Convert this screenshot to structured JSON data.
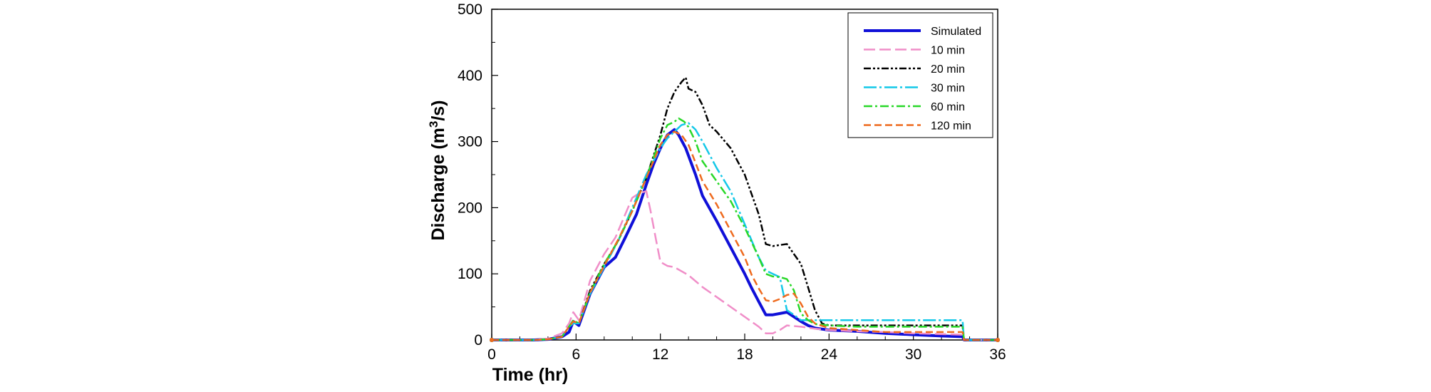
{
  "chart_data": {
    "type": "line",
    "title": "",
    "xlabel": "Time (hr)",
    "ylabel_main": "Discharge (m",
    "ylabel_sup": "3",
    "ylabel_end": "/s)",
    "xlim": [
      0,
      36
    ],
    "ylim": [
      0,
      500
    ],
    "xticks": [
      0,
      6,
      12,
      18,
      24,
      30,
      36
    ],
    "yticks": [
      0,
      100,
      200,
      300,
      400,
      500
    ],
    "xticks_minor_step": 2,
    "yticks_minor_step": 50,
    "grid": false,
    "legend_position": "top-right",
    "series": [
      {
        "name": "Simulated",
        "color": "#1010d8",
        "dash": "",
        "width": 4,
        "x": [
          0,
          2,
          3,
          4,
          5,
          5.5,
          5.8,
          6.2,
          7,
          8,
          8.8,
          9.5,
          10.3,
          11,
          11.5,
          12,
          12.5,
          13,
          13.3,
          13.8,
          14.5,
          15,
          16,
          17,
          18,
          18.5,
          19,
          19.5,
          20,
          20.5,
          21,
          21.5,
          22,
          22.5,
          23,
          24,
          26,
          28,
          30,
          31,
          32,
          33.5,
          33.6,
          36
        ],
        "y": [
          0,
          0,
          0,
          1,
          5,
          12,
          28,
          22,
          70,
          110,
          125,
          155,
          190,
          235,
          265,
          290,
          310,
          318,
          310,
          290,
          250,
          218,
          180,
          140,
          100,
          78,
          58,
          38,
          38,
          40,
          42,
          35,
          28,
          22,
          18,
          15,
          13,
          10,
          8,
          7,
          6,
          5,
          0,
          0
        ]
      },
      {
        "name": "10 min",
        "color": "#f08ec8",
        "dash": "16,6",
        "width": 2.5,
        "x": [
          0,
          3,
          4,
          5,
          5.5,
          5.8,
          6.2,
          7,
          8,
          8.8,
          9.3,
          10,
          10.5,
          11,
          11.3,
          11.7,
          12,
          12.5,
          13,
          14,
          15,
          16,
          17,
          18,
          19,
          19.5,
          20,
          20.5,
          21,
          22,
          23,
          24,
          26,
          28,
          30,
          33.5,
          33.6,
          36
        ],
        "y": [
          0,
          0,
          2,
          10,
          25,
          42,
          30,
          90,
          130,
          155,
          180,
          215,
          222,
          225,
          195,
          150,
          118,
          112,
          110,
          98,
          80,
          65,
          50,
          35,
          20,
          10,
          10,
          15,
          22,
          20,
          17,
          15,
          13,
          12,
          10,
          8,
          0,
          0
        ]
      },
      {
        "name": "20 min",
        "color": "#000000",
        "dash": "10,3,3,3,3,3",
        "width": 2.5,
        "x": [
          0,
          3,
          4,
          5,
          5.5,
          5.8,
          6.2,
          7,
          8,
          9,
          10,
          11,
          12,
          12.5,
          13,
          13.5,
          13.8,
          14,
          14.5,
          15,
          15.5,
          16,
          17,
          18,
          19,
          19.5,
          20,
          21,
          21.5,
          22,
          22.5,
          23,
          23.5,
          24,
          26,
          28,
          30,
          32,
          33.5,
          33.6,
          36
        ],
        "y": [
          0,
          0,
          1,
          5,
          20,
          28,
          25,
          75,
          115,
          150,
          195,
          245,
          310,
          350,
          375,
          390,
          397,
          380,
          375,
          355,
          325,
          315,
          290,
          250,
          190,
          145,
          142,
          145,
          130,
          115,
          80,
          45,
          25,
          22,
          22,
          22,
          22,
          22,
          22,
          0,
          0
        ]
      },
      {
        "name": "30 min",
        "color": "#14c8e8",
        "dash": "18,4,3,4",
        "width": 2.5,
        "x": [
          0,
          3,
          4,
          5,
          5.5,
          5.8,
          6.2,
          7,
          8,
          9,
          10,
          11,
          12,
          12.5,
          13,
          13.5,
          14,
          14.5,
          15,
          16,
          17,
          18,
          19,
          19.5,
          20,
          20.5,
          21,
          21.5,
          22,
          22.5,
          23,
          23.5,
          24,
          26,
          28,
          30,
          32,
          33.5,
          33.6,
          36
        ],
        "y": [
          0,
          0,
          1,
          5,
          20,
          25,
          25,
          70,
          110,
          150,
          200,
          250,
          290,
          305,
          315,
          325,
          328,
          318,
          300,
          260,
          225,
          175,
          125,
          105,
          100,
          95,
          45,
          38,
          30,
          30,
          30,
          30,
          30,
          30,
          30,
          30,
          30,
          30,
          0,
          0
        ]
      },
      {
        "name": "60 min",
        "color": "#28d828",
        "dash": "12,4,3,4",
        "width": 2.5,
        "x": [
          0,
          3,
          4,
          5,
          5.5,
          5.8,
          6.2,
          7,
          8,
          9,
          10,
          11,
          12,
          12.5,
          13,
          13.3,
          13.7,
          14,
          14.5,
          15,
          16,
          17,
          18,
          19,
          19.5,
          20,
          20.5,
          21,
          21.5,
          22,
          22.5,
          23,
          24,
          26,
          28,
          30,
          32,
          33.5,
          33.6,
          36
        ],
        "y": [
          0,
          0,
          1,
          5,
          20,
          30,
          25,
          72,
          115,
          150,
          195,
          245,
          305,
          325,
          330,
          335,
          330,
          322,
          300,
          270,
          240,
          210,
          170,
          125,
          100,
          96,
          95,
          92,
          75,
          40,
          30,
          24,
          22,
          20,
          20,
          20,
          20,
          20,
          0,
          0
        ]
      },
      {
        "name": "120 min",
        "color": "#ee6a1e",
        "dash": "10,5",
        "width": 2.5,
        "x": [
          0,
          3,
          4,
          5,
          5.5,
          5.8,
          6.2,
          7,
          8,
          9,
          10,
          11,
          12,
          12.5,
          13,
          13.5,
          14,
          14.5,
          15,
          16,
          17,
          18,
          18.5,
          19,
          19.5,
          20,
          20.5,
          21,
          21.5,
          22,
          22.5,
          23,
          24,
          26,
          28,
          30,
          32,
          33.5,
          33.6,
          36
        ],
        "y": [
          0,
          0,
          1,
          5,
          20,
          28,
          25,
          72,
          112,
          152,
          195,
          245,
          295,
          310,
          315,
          310,
          295,
          268,
          240,
          205,
          165,
          125,
          98,
          78,
          60,
          58,
          62,
          68,
          70,
          55,
          35,
          25,
          18,
          15,
          12,
          12,
          12,
          12,
          0,
          0
        ]
      }
    ]
  }
}
